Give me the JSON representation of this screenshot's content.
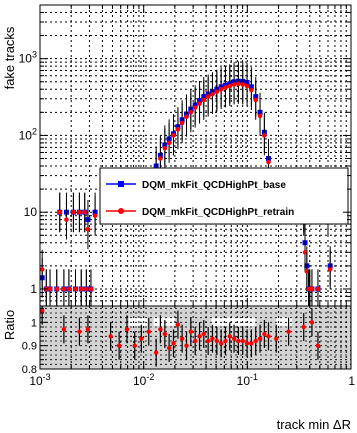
{
  "chart_data": [
    {
      "panel": "main",
      "type": "scatter",
      "ylabel": "fake tracks",
      "xlabel": "",
      "xscale": "log",
      "yscale": "log",
      "xlim": [
        0.001,
        1
      ],
      "ylim": [
        0.6,
        5000
      ],
      "grid": true,
      "legend_position": "middle-right",
      "x_ticks": [
        "10^{-3}",
        "10^{-2}",
        "10^{-1}",
        "1"
      ],
      "y_ticks": [
        {
          "value": 1,
          "label": "1"
        },
        {
          "value": 10,
          "label": "10"
        },
        {
          "value": 100,
          "label": "10^{2}"
        },
        {
          "value": 1000,
          "label": "10^{3}"
        }
      ],
      "series": [
        {
          "name": "DQM_mkFit_QCDHighPt_base",
          "color": "#0000ff",
          "marker": "square",
          "points": [
            [
              0.00105,
              1.4
            ],
            [
              0.00115,
              1.0
            ],
            [
              0.00125,
              1.0
            ],
            [
              0.00145,
              1.0
            ],
            [
              0.00155,
              10.0
            ],
            [
              0.0017,
              1.0
            ],
            [
              0.0018,
              10.0
            ],
            [
              0.0019,
              1.0
            ],
            [
              0.0021,
              10.0
            ],
            [
              0.0022,
              1.0
            ],
            [
              0.0024,
              10.0
            ],
            [
              0.0025,
              1.0
            ],
            [
              0.0027,
              10.0
            ],
            [
              0.0028,
              1.0
            ],
            [
              0.0029,
              8.0
            ],
            [
              0.0031,
              1.0
            ],
            [
              0.0034,
              10.0
            ],
            [
              0.0132,
              40
            ],
            [
              0.0145,
              55
            ],
            [
              0.016,
              75
            ],
            [
              0.0176,
              90
            ],
            [
              0.0194,
              105
            ],
            [
              0.0214,
              130
            ],
            [
              0.0235,
              160
            ],
            [
              0.0259,
              190
            ],
            [
              0.0285,
              220
            ],
            [
              0.0314,
              250
            ],
            [
              0.0346,
              285
            ],
            [
              0.038,
              320
            ],
            [
              0.0419,
              345
            ],
            [
              0.0461,
              370
            ],
            [
              0.0508,
              400
            ],
            [
              0.0559,
              430
            ],
            [
              0.0615,
              450
            ],
            [
              0.0677,
              470
            ],
            [
              0.0745,
              500
            ],
            [
              0.082,
              510
            ],
            [
              0.0903,
              505
            ],
            [
              0.0994,
              490
            ],
            [
              0.1094,
              430
            ],
            [
              0.1205,
              320
            ],
            [
              0.1326,
              200
            ],
            [
              0.146,
              110
            ],
            [
              0.16,
              50
            ],
            [
              0.35,
              10.0
            ],
            [
              0.36,
              4.0
            ],
            [
              0.375,
              2.0
            ],
            [
              0.39,
              1.0
            ],
            [
              0.4,
              1.0
            ],
            [
              0.42,
              1.0
            ],
            [
              0.48,
              1.0
            ],
            [
              0.6,
              10.0
            ],
            [
              0.63,
              2.0
            ]
          ]
        },
        {
          "name": "DQM_mkFit_QCDHighPt_retrain",
          "color": "#ff0000",
          "marker": "circle",
          "points": [
            [
              0.00105,
              1.8
            ],
            [
              0.00115,
              1.0
            ],
            [
              0.00125,
              1.0
            ],
            [
              0.00145,
              1.0
            ],
            [
              0.00155,
              10.0
            ],
            [
              0.0017,
              1.0
            ],
            [
              0.0018,
              8.0
            ],
            [
              0.0019,
              1.0
            ],
            [
              0.0021,
              10.0
            ],
            [
              0.0022,
              1.0
            ],
            [
              0.0024,
              10.0
            ],
            [
              0.0025,
              1.0
            ],
            [
              0.0027,
              10.0
            ],
            [
              0.0028,
              1.0
            ],
            [
              0.0029,
              6.0
            ],
            [
              0.0031,
              1.0
            ],
            [
              0.0034,
              9.0
            ],
            [
              0.0132,
              35
            ],
            [
              0.0145,
              50
            ],
            [
              0.016,
              68
            ],
            [
              0.0176,
              80
            ],
            [
              0.0194,
              100
            ],
            [
              0.0214,
              120
            ],
            [
              0.0235,
              145
            ],
            [
              0.0259,
              175
            ],
            [
              0.0285,
              200
            ],
            [
              0.0314,
              230
            ],
            [
              0.0346,
              260
            ],
            [
              0.038,
              290
            ],
            [
              0.0419,
              320
            ],
            [
              0.0461,
              345
            ],
            [
              0.0508,
              370
            ],
            [
              0.0559,
              400
            ],
            [
              0.0615,
              420
            ],
            [
              0.0677,
              440
            ],
            [
              0.0745,
              460
            ],
            [
              0.082,
              470
            ],
            [
              0.0903,
              460
            ],
            [
              0.0994,
              440
            ],
            [
              0.1094,
              390
            ],
            [
              0.1205,
              290
            ],
            [
              0.1326,
              180
            ],
            [
              0.146,
              100
            ],
            [
              0.16,
              45
            ],
            [
              0.35,
              9.0
            ],
            [
              0.36,
              3.0
            ],
            [
              0.375,
              1.7
            ],
            [
              0.39,
              1.0
            ],
            [
              0.4,
              1.0
            ],
            [
              0.42,
              1.0
            ],
            [
              0.48,
              1.0
            ],
            [
              0.6,
              9.0
            ],
            [
              0.63,
              1.8
            ]
          ]
        }
      ]
    },
    {
      "panel": "ratio",
      "type": "scatter",
      "ylabel": "Ratio",
      "xlabel": "track min ΔR",
      "xscale": "log",
      "xlim": [
        0.001,
        1
      ],
      "ylim": [
        0.8,
        1.07
      ],
      "grid": true,
      "x_ticks": [
        "10^{-3}",
        "10^{-2}",
        "10^{-1}",
        "1"
      ],
      "y_ticks": [
        {
          "value": 0.8,
          "label": "0.8"
        },
        {
          "value": 0.9,
          "label": "0.9"
        },
        {
          "value": 1.0,
          "label": "1"
        }
      ],
      "uncertainty_band_color": "#d3d3d3",
      "series": [
        {
          "name": "",
          "color": "#ff0000",
          "marker": "circle",
          "points": [
            [
              0.00105,
              1.05
            ],
            [
              0.0017,
              0.97
            ],
            [
              0.0024,
              0.96
            ],
            [
              0.0029,
              0.97
            ],
            [
              0.0048,
              0.94
            ],
            [
              0.0058,
              0.9
            ],
            [
              0.0069,
              0.97
            ],
            [
              0.0082,
              0.9
            ],
            [
              0.0095,
              0.93
            ],
            [
              0.0112,
              0.96
            ],
            [
              0.0132,
              0.87
            ],
            [
              0.0145,
              0.97
            ],
            [
              0.016,
              0.95
            ],
            [
              0.0176,
              0.89
            ],
            [
              0.0194,
              0.91
            ],
            [
              0.0214,
              0.99
            ],
            [
              0.0235,
              0.93
            ],
            [
              0.0259,
              0.9
            ],
            [
              0.0285,
              0.96
            ],
            [
              0.0314,
              0.92
            ],
            [
              0.0346,
              0.94
            ],
            [
              0.038,
              0.95
            ],
            [
              0.0419,
              0.92
            ],
            [
              0.0461,
              0.93
            ],
            [
              0.0508,
              0.92
            ],
            [
              0.0559,
              0.91
            ],
            [
              0.0615,
              0.92
            ],
            [
              0.0677,
              0.94
            ],
            [
              0.0745,
              0.93
            ],
            [
              0.082,
              0.92
            ],
            [
              0.0903,
              0.92
            ],
            [
              0.0994,
              0.91
            ],
            [
              0.1094,
              0.91
            ],
            [
              0.1205,
              0.92
            ],
            [
              0.1326,
              0.93
            ],
            [
              0.146,
              0.95
            ],
            [
              0.16,
              0.94
            ],
            [
              0.19,
              0.93
            ],
            [
              0.25,
              0.96
            ],
            [
              0.35,
              0.98
            ],
            [
              0.42,
              1.0
            ],
            [
              0.48,
              0.9
            ]
          ]
        }
      ]
    }
  ]
}
